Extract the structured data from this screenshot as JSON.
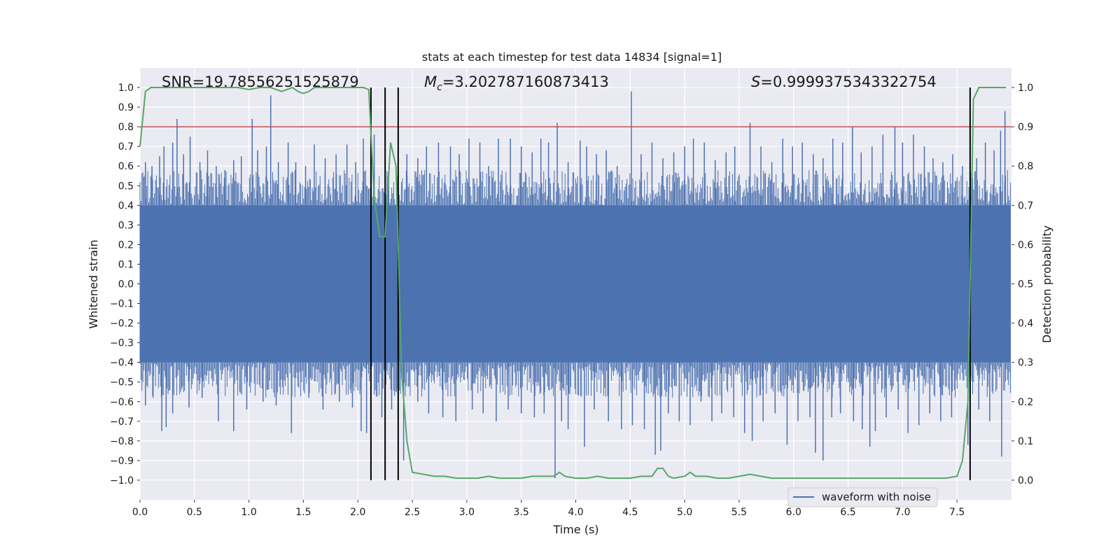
{
  "chart_data": {
    "type": "line",
    "title": "stats at each timestep for test data 14834 [signal=1]",
    "xlabel": "Time (s)",
    "ylabel": "Whitened strain",
    "ylabel_right": "Detection probability",
    "xlim": [
      0.0,
      8.0
    ],
    "ylim": [
      -1.1,
      1.1
    ],
    "ylim_right": [
      -0.05,
      1.05
    ],
    "x_ticks": [
      0.0,
      0.5,
      1.0,
      1.5,
      2.0,
      2.5,
      3.0,
      3.5,
      4.0,
      4.5,
      5.0,
      5.5,
      6.0,
      6.5,
      7.0,
      7.5
    ],
    "x_tick_labels": [
      "0.0",
      "0.5",
      "1.0",
      "1.5",
      "2.0",
      "2.5",
      "3.0",
      "3.5",
      "4.0",
      "4.5",
      "5.0",
      "5.5",
      "6.0",
      "6.5",
      "7.0",
      "7.5"
    ],
    "y_ticks": [
      1.0,
      0.9,
      0.8,
      0.7,
      0.6,
      0.5,
      0.4,
      0.3,
      0.2,
      0.1,
      0.0,
      -0.1,
      -0.2,
      -0.3,
      -0.4,
      -0.5,
      -0.6,
      -0.7,
      -0.8,
      -0.9,
      -1.0
    ],
    "y_tick_labels": [
      "1.0",
      "0.9",
      "0.8",
      "0.7",
      "0.6",
      "0.5",
      "0.4",
      "0.3",
      "0.2",
      "0.1",
      "0.0",
      "−0.1",
      "−0.2",
      "−0.3",
      "−0.4",
      "−0.5",
      "−0.6",
      "−0.7",
      "−0.8",
      "−0.9",
      "−1.0"
    ],
    "y_right_ticks": [
      1.0,
      0.9,
      0.8,
      0.7,
      0.6,
      0.5,
      0.4,
      0.3,
      0.2,
      0.1,
      0.0
    ],
    "y_right_tick_labels": [
      "1.0",
      "0.9",
      "0.8",
      "0.7",
      "0.6",
      "0.5",
      "0.4",
      "0.3",
      "0.2",
      "0.1",
      "0.0"
    ],
    "annotations": {
      "snr": "SNR=19.78556251525879",
      "mc_symbol": "M",
      "mc_subscript": "c",
      "mc_value": "=3.202787160873413",
      "s_symbol": "S",
      "s_value": "=0.9999375343322754"
    },
    "legend": {
      "label": "waveform with noise",
      "placement": "lower-right"
    },
    "threshold": {
      "value": 0.8,
      "color": "#c44e52"
    },
    "vertical_lines_x": [
      2.12,
      2.25,
      2.37,
      7.62
    ],
    "waveform": {
      "color": "#4c72b0",
      "x_start": 0.0,
      "x_end": 7.99,
      "band_upper": 0.4,
      "band_lower": -0.4,
      "upward_spikes": [
        [
          0.05,
          0.62
        ],
        [
          0.11,
          0.6
        ],
        [
          0.18,
          0.65
        ],
        [
          0.22,
          0.7
        ],
        [
          0.3,
          0.72
        ],
        [
          0.34,
          0.84
        ],
        [
          0.4,
          0.66
        ],
        [
          0.46,
          0.75
        ],
        [
          0.55,
          0.62
        ],
        [
          0.62,
          0.68
        ],
        [
          0.7,
          0.6
        ],
        [
          0.78,
          0.58
        ],
        [
          0.86,
          0.63
        ],
        [
          0.93,
          0.65
        ],
        [
          1.03,
          0.84
        ],
        [
          1.08,
          0.68
        ],
        [
          1.16,
          0.7
        ],
        [
          1.2,
          0.96
        ],
        [
          1.27,
          0.62
        ],
        [
          1.36,
          0.72
        ],
        [
          1.43,
          0.62
        ],
        [
          1.52,
          0.6
        ],
        [
          1.6,
          0.71
        ],
        [
          1.7,
          0.64
        ],
        [
          1.8,
          0.66
        ],
        [
          1.9,
          0.71
        ],
        [
          1.98,
          0.62
        ],
        [
          2.05,
          0.74
        ],
        [
          2.15,
          0.76
        ],
        [
          2.28,
          0.57
        ],
        [
          2.45,
          0.66
        ],
        [
          2.55,
          0.64
        ],
        [
          2.63,
          0.7
        ],
        [
          2.74,
          0.72
        ],
        [
          2.85,
          0.7
        ],
        [
          2.93,
          0.66
        ],
        [
          3.02,
          0.74
        ],
        [
          3.12,
          0.72
        ],
        [
          3.2,
          0.6
        ],
        [
          3.29,
          0.74
        ],
        [
          3.4,
          0.74
        ],
        [
          3.5,
          0.7
        ],
        [
          3.6,
          0.67
        ],
        [
          3.68,
          0.74
        ],
        [
          3.75,
          0.72
        ],
        [
          3.83,
          0.82
        ],
        [
          3.93,
          0.62
        ],
        [
          4.04,
          0.73
        ],
        [
          4.1,
          0.7
        ],
        [
          4.19,
          0.66
        ],
        [
          4.28,
          0.68
        ],
        [
          4.38,
          0.6
        ],
        [
          4.51,
          0.98
        ],
        [
          4.6,
          0.66
        ],
        [
          4.7,
          0.72
        ],
        [
          4.8,
          0.64
        ],
        [
          4.9,
          0.67
        ],
        [
          5.0,
          0.7
        ],
        [
          5.08,
          0.74
        ],
        [
          5.18,
          0.72
        ],
        [
          5.28,
          0.63
        ],
        [
          5.38,
          0.67
        ],
        [
          5.46,
          0.7
        ],
        [
          5.6,
          0.82
        ],
        [
          5.7,
          0.7
        ],
        [
          5.8,
          0.62
        ],
        [
          5.9,
          0.74
        ],
        [
          5.99,
          0.7
        ],
        [
          6.08,
          0.72
        ],
        [
          6.18,
          0.66
        ],
        [
          6.27,
          0.64
        ],
        [
          6.36,
          0.74
        ],
        [
          6.45,
          0.72
        ],
        [
          6.54,
          0.8
        ],
        [
          6.62,
          0.67
        ],
        [
          6.72,
          0.7
        ],
        [
          6.82,
          0.76
        ],
        [
          6.93,
          0.8
        ],
        [
          7.0,
          0.72
        ],
        [
          7.1,
          0.76
        ],
        [
          7.2,
          0.7
        ],
        [
          7.28,
          0.64
        ],
        [
          7.37,
          0.62
        ],
        [
          7.46,
          0.66
        ],
        [
          7.55,
          0.6
        ],
        [
          7.68,
          0.64
        ],
        [
          7.76,
          0.72
        ],
        [
          7.84,
          0.68
        ],
        [
          7.9,
          0.78
        ],
        [
          7.94,
          0.88
        ]
      ],
      "downward_spikes": [
        [
          0.05,
          -0.62
        ],
        [
          0.12,
          -0.58
        ],
        [
          0.2,
          -0.75
        ],
        [
          0.24,
          -0.73
        ],
        [
          0.3,
          -0.66
        ],
        [
          0.45,
          -0.63
        ],
        [
          0.57,
          -0.58
        ],
        [
          0.72,
          -0.7
        ],
        [
          0.86,
          -0.75
        ],
        [
          0.98,
          -0.64
        ],
        [
          1.13,
          -0.6
        ],
        [
          1.25,
          -0.62
        ],
        [
          1.39,
          -0.76
        ],
        [
          1.55,
          -0.58
        ],
        [
          1.68,
          -0.64
        ],
        [
          1.83,
          -0.6
        ],
        [
          1.95,
          -0.63
        ],
        [
          2.03,
          -0.75
        ],
        [
          2.08,
          -0.76
        ],
        [
          2.22,
          -0.68
        ],
        [
          2.31,
          -0.64
        ],
        [
          2.42,
          -0.9
        ],
        [
          2.55,
          -0.6
        ],
        [
          2.65,
          -0.66
        ],
        [
          2.78,
          -0.68
        ],
        [
          2.9,
          -0.7
        ],
        [
          3.05,
          -0.64
        ],
        [
          3.15,
          -0.66
        ],
        [
          3.27,
          -0.7
        ],
        [
          3.38,
          -0.64
        ],
        [
          3.5,
          -0.66
        ],
        [
          3.62,
          -0.68
        ],
        [
          3.71,
          -0.66
        ],
        [
          3.81,
          -0.99
        ],
        [
          3.87,
          -0.7
        ],
        [
          3.93,
          -0.74
        ],
        [
          4.08,
          -0.83
        ],
        [
          4.17,
          -0.64
        ],
        [
          4.3,
          -0.7
        ],
        [
          4.42,
          -0.74
        ],
        [
          4.52,
          -0.72
        ],
        [
          4.63,
          -0.74
        ],
        [
          4.73,
          -0.87
        ],
        [
          4.78,
          -0.85
        ],
        [
          4.85,
          -0.66
        ],
        [
          4.95,
          -0.7
        ],
        [
          5.05,
          -0.72
        ],
        [
          5.15,
          -0.6
        ],
        [
          5.25,
          -0.7
        ],
        [
          5.34,
          -0.66
        ],
        [
          5.45,
          -0.68
        ],
        [
          5.55,
          -0.76
        ],
        [
          5.62,
          -0.8
        ],
        [
          5.72,
          -0.7
        ],
        [
          5.83,
          -0.66
        ],
        [
          5.94,
          -0.82
        ],
        [
          6.04,
          -0.7
        ],
        [
          6.15,
          -0.68
        ],
        [
          6.2,
          -0.86
        ],
        [
          6.27,
          -0.9
        ],
        [
          6.35,
          -0.68
        ],
        [
          6.43,
          -0.66
        ],
        [
          6.55,
          -0.7
        ],
        [
          6.63,
          -0.74
        ],
        [
          6.7,
          -0.83
        ],
        [
          6.75,
          -0.75
        ],
        [
          6.85,
          -0.68
        ],
        [
          6.96,
          -0.64
        ],
        [
          7.05,
          -0.76
        ],
        [
          7.15,
          -0.72
        ],
        [
          7.25,
          -0.66
        ],
        [
          7.35,
          -0.7
        ],
        [
          7.45,
          -0.68
        ],
        [
          7.6,
          -0.82
        ],
        [
          7.7,
          -0.64
        ],
        [
          7.8,
          -0.7
        ],
        [
          7.91,
          -0.88
        ]
      ]
    },
    "probability": {
      "color": "#55a868",
      "x": [
        0.0,
        0.05,
        0.1,
        0.2,
        0.3,
        0.4,
        0.5,
        0.6,
        0.7,
        0.8,
        0.9,
        1.0,
        1.1,
        1.2,
        1.3,
        1.4,
        1.45,
        1.5,
        1.55,
        1.6,
        1.7,
        1.8,
        1.9,
        2.0,
        2.05,
        2.1,
        2.15,
        2.2,
        2.25,
        2.3,
        2.35,
        2.37,
        2.4,
        2.45,
        2.5,
        2.6,
        2.7,
        2.8,
        2.9,
        3.0,
        3.1,
        3.2,
        3.3,
        3.4,
        3.5,
        3.6,
        3.7,
        3.8,
        3.85,
        3.9,
        4.0,
        4.1,
        4.2,
        4.3,
        4.4,
        4.5,
        4.6,
        4.7,
        4.75,
        4.8,
        4.85,
        4.9,
        5.0,
        5.05,
        5.1,
        5.2,
        5.3,
        5.4,
        5.5,
        5.6,
        5.7,
        5.8,
        5.9,
        6.0,
        6.1,
        6.2,
        6.3,
        6.4,
        6.5,
        6.6,
        6.7,
        6.8,
        6.9,
        7.0,
        7.1,
        7.2,
        7.3,
        7.4,
        7.5,
        7.55,
        7.6,
        7.65,
        7.7,
        7.75,
        7.8,
        7.9,
        7.95
      ],
      "y": [
        0.85,
        0.99,
        1.0,
        1.0,
        1.0,
        1.0,
        1.0,
        1.0,
        1.0,
        1.0,
        1.0,
        0.995,
        1.0,
        1.0,
        0.99,
        1.0,
        0.99,
        0.985,
        0.99,
        1.0,
        1.0,
        1.0,
        1.0,
        1.0,
        1.0,
        0.995,
        0.72,
        0.62,
        0.62,
        0.86,
        0.8,
        0.6,
        0.28,
        0.1,
        0.02,
        0.015,
        0.01,
        0.01,
        0.005,
        0.005,
        0.005,
        0.01,
        0.005,
        0.005,
        0.005,
        0.01,
        0.01,
        0.01,
        0.02,
        0.01,
        0.005,
        0.005,
        0.01,
        0.005,
        0.005,
        0.005,
        0.01,
        0.01,
        0.03,
        0.03,
        0.01,
        0.005,
        0.01,
        0.02,
        0.01,
        0.01,
        0.005,
        0.005,
        0.01,
        0.015,
        0.01,
        0.005,
        0.005,
        0.005,
        0.005,
        0.005,
        0.005,
        0.005,
        0.005,
        0.005,
        0.005,
        0.005,
        0.005,
        0.005,
        0.005,
        0.005,
        0.005,
        0.005,
        0.01,
        0.05,
        0.2,
        0.97,
        1.0,
        1.0,
        1.0,
        1.0,
        1.0
      ]
    }
  }
}
